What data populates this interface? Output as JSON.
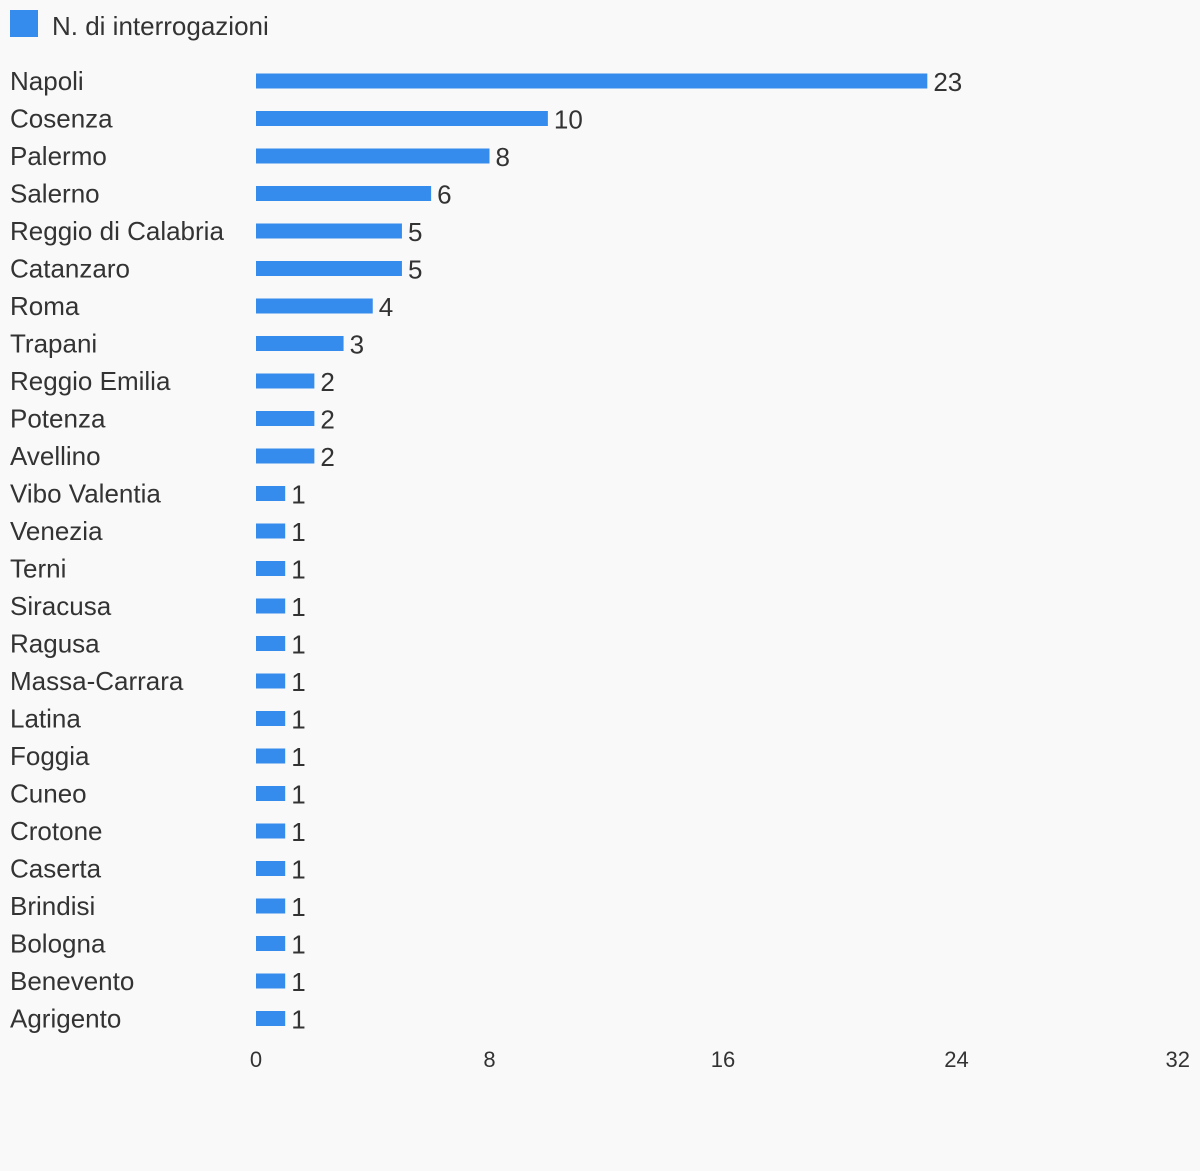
{
  "chart_data": {
    "type": "bar",
    "orientation": "horizontal",
    "title": "",
    "xlabel": "",
    "ylabel": "",
    "legend": {
      "placement": "top-left",
      "entries": [
        "N. di interrogazioni"
      ]
    },
    "categories": [
      "Napoli",
      "Cosenza",
      "Palermo",
      "Salerno",
      "Reggio di Calabria",
      "Catanzaro",
      "Roma",
      "Trapani",
      "Reggio Emilia",
      "Potenza",
      "Avellino",
      "Vibo Valentia",
      "Venezia",
      "Terni",
      "Siracusa",
      "Ragusa",
      "Massa-Carrara",
      "Latina",
      "Foggia",
      "Cuneo",
      "Crotone",
      "Caserta",
      "Brindisi",
      "Bologna",
      "Benevento",
      "Agrigento"
    ],
    "series": [
      {
        "name": "N. di interrogazioni",
        "color": "#368cec",
        "values": [
          23,
          10,
          8,
          6,
          5,
          5,
          4,
          3,
          2,
          2,
          2,
          1,
          1,
          1,
          1,
          1,
          1,
          1,
          1,
          1,
          1,
          1,
          1,
          1,
          1,
          1
        ]
      }
    ],
    "xlim": [
      0,
      32
    ],
    "xticks": [
      0,
      8,
      16,
      24,
      32
    ],
    "grid": false,
    "data_labels": true
  }
}
